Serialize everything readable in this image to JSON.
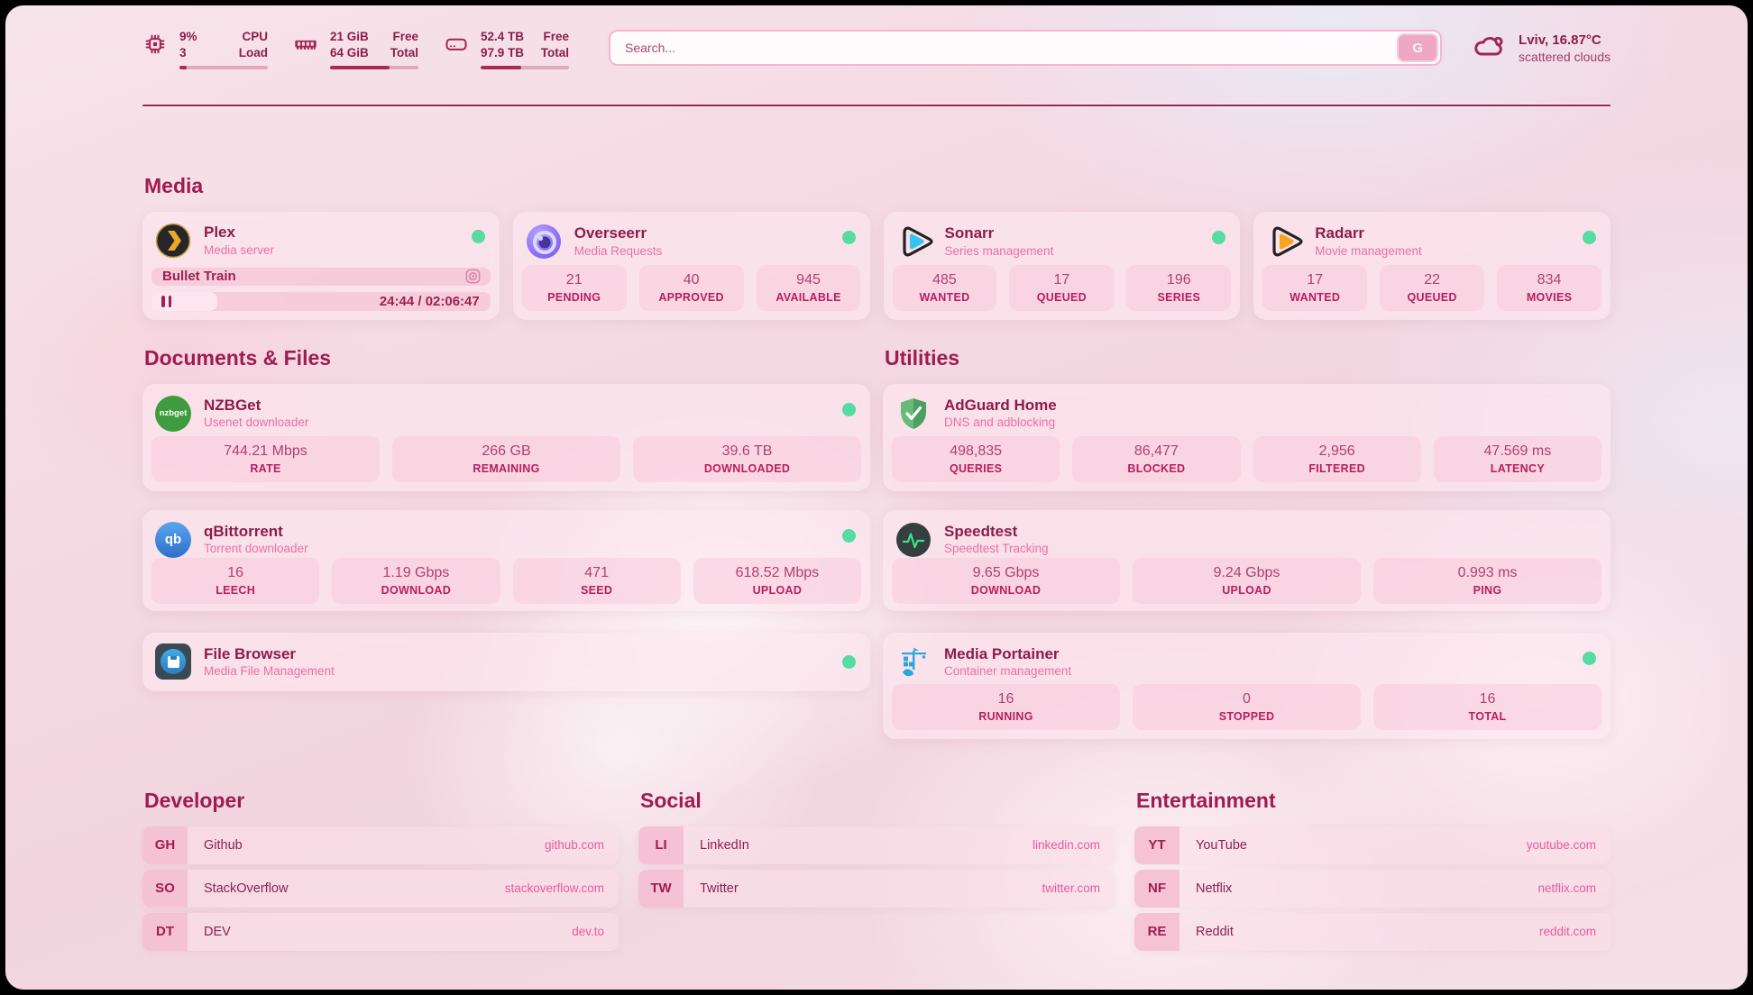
{
  "system_stats": {
    "cpu": {
      "value": "9%",
      "secondary": "3",
      "label_top": "CPU",
      "label_bottom": "Load",
      "progress": 8
    },
    "memory": {
      "value": "21 GiB",
      "secondary": "64 GiB",
      "label_top": "Free",
      "label_bottom": "Total",
      "progress": 67
    },
    "storage": {
      "value": "52.4 TB",
      "secondary": "97.9 TB",
      "label_top": "Free",
      "label_bottom": "Total",
      "progress": 46
    }
  },
  "search": {
    "placeholder": "Search...",
    "button_label": "G"
  },
  "weather": {
    "location_temp": "Lviv, 16.87°C",
    "condition": "scattered clouds"
  },
  "sections": {
    "media": "Media",
    "documents": "Documents & Files",
    "utilities": "Utilities",
    "developer": "Developer",
    "social": "Social",
    "entertainment": "Entertainment"
  },
  "apps": {
    "plex": {
      "name": "Plex",
      "description": "Media server",
      "now_playing": "Bullet Train",
      "time": "24:44 / 02:06:47",
      "progress": 19.5
    },
    "overseerr": {
      "name": "Overseerr",
      "description": "Media Requests",
      "stats": [
        {
          "v": "21",
          "l": "PENDING"
        },
        {
          "v": "40",
          "l": "APPROVED"
        },
        {
          "v": "945",
          "l": "AVAILABLE"
        }
      ]
    },
    "sonarr": {
      "name": "Sonarr",
      "description": "Series management",
      "stats": [
        {
          "v": "485",
          "l": "WANTED"
        },
        {
          "v": "17",
          "l": "QUEUED"
        },
        {
          "v": "196",
          "l": "SERIES"
        }
      ]
    },
    "radarr": {
      "name": "Radarr",
      "description": "Movie management",
      "stats": [
        {
          "v": "17",
          "l": "WANTED"
        },
        {
          "v": "22",
          "l": "QUEUED"
        },
        {
          "v": "834",
          "l": "MOVIES"
        }
      ]
    },
    "nzbget": {
      "name": "NZBGet",
      "description": "Usenet downloader",
      "logo_text": "nzbget",
      "stats": [
        {
          "v": "744.21 Mbps",
          "l": "RATE"
        },
        {
          "v": "266 GB",
          "l": "REMAINING"
        },
        {
          "v": "39.6 TB",
          "l": "DOWNLOADED"
        }
      ]
    },
    "qbittorrent": {
      "name": "qBittorrent",
      "description": "Torrent downloader",
      "logo_text": "qb",
      "stats": [
        {
          "v": "16",
          "l": "LEECH"
        },
        {
          "v": "1.19 Gbps",
          "l": "DOWNLOAD"
        },
        {
          "v": "471",
          "l": "SEED"
        },
        {
          "v": "618.52 Mbps",
          "l": "UPLOAD"
        }
      ]
    },
    "filebrowser": {
      "name": "File Browser",
      "description": "Media File Management"
    },
    "adguard": {
      "name": "AdGuard Home",
      "description": "DNS and adblocking",
      "stats": [
        {
          "v": "498,835",
          "l": "QUERIES"
        },
        {
          "v": "86,477",
          "l": "BLOCKED"
        },
        {
          "v": "2,956",
          "l": "FILTERED"
        },
        {
          "v": "47.569 ms",
          "l": "LATENCY"
        }
      ]
    },
    "speedtest": {
      "name": "Speedtest",
      "description": "Speedtest Tracking",
      "stats": [
        {
          "v": "9.65 Gbps",
          "l": "DOWNLOAD"
        },
        {
          "v": "9.24 Gbps",
          "l": "UPLOAD"
        },
        {
          "v": "0.993 ms",
          "l": "PING"
        }
      ]
    },
    "portainer": {
      "name": "Media Portainer",
      "description": "Container management",
      "stats": [
        {
          "v": "16",
          "l": "RUNNING"
        },
        {
          "v": "0",
          "l": "STOPPED"
        },
        {
          "v": "16",
          "l": "TOTAL"
        }
      ]
    }
  },
  "links": {
    "developer": [
      {
        "abbr": "GH",
        "name": "Github",
        "url": "github.com"
      },
      {
        "abbr": "SO",
        "name": "StackOverflow",
        "url": "stackoverflow.com"
      },
      {
        "abbr": "DT",
        "name": "DEV",
        "url": "dev.to"
      }
    ],
    "social": [
      {
        "abbr": "LI",
        "name": "LinkedIn",
        "url": "linkedin.com"
      },
      {
        "abbr": "TW",
        "name": "Twitter",
        "url": "twitter.com"
      }
    ],
    "entertainment": [
      {
        "abbr": "YT",
        "name": "YouTube",
        "url": "youtube.com"
      },
      {
        "abbr": "NF",
        "name": "Netflix",
        "url": "netflix.com"
      },
      {
        "abbr": "RE",
        "name": "Reddit",
        "url": "reddit.com"
      }
    ]
  },
  "colors": {
    "accent": "#9e1c4f",
    "link_pink": "#e75b9e",
    "status_online": "#56dba2"
  }
}
